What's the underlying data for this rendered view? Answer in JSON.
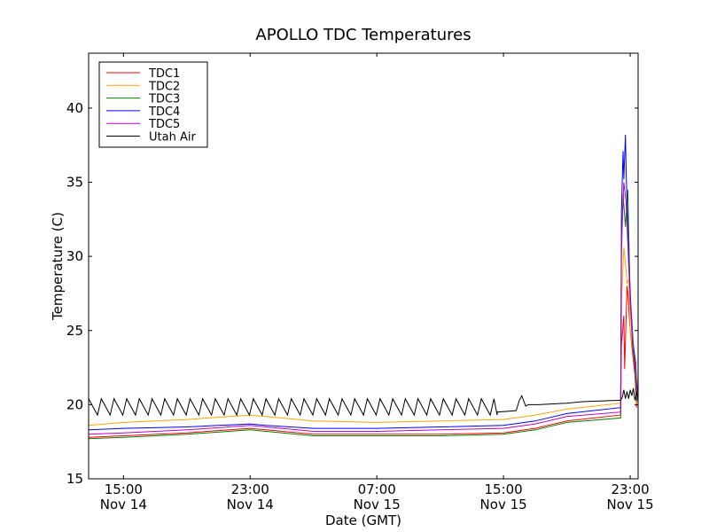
{
  "chart_data": {
    "type": "line",
    "title": "APOLLO TDC Temperatures",
    "xlabel": "Date (GMT)",
    "ylabel": "Temperature (C)",
    "xlim": [
      12.8,
      47.5
    ],
    "ylim": [
      15,
      43.7
    ],
    "yticks": [
      15,
      20,
      25,
      30,
      35,
      40
    ],
    "xticks": [
      {
        "x": 15,
        "time": "15:00",
        "date": "Nov 14"
      },
      {
        "x": 23,
        "time": "23:00",
        "date": "Nov 14"
      },
      {
        "x": 31,
        "time": "07:00",
        "date": "Nov 15"
      },
      {
        "x": 39,
        "time": "15:00",
        "date": "Nov 15"
      },
      {
        "x": 47,
        "time": "23:00",
        "date": "Nov 15"
      }
    ],
    "legend_position": "top-left",
    "series": [
      {
        "name": "TDC1",
        "color": "#ff0000",
        "x": [
          12.8,
          15,
          19,
          23,
          24,
          27,
          31,
          35,
          39,
          41,
          43,
          46.4,
          46.45,
          46.6,
          46.65,
          46.8,
          46.85,
          47.0,
          47.15,
          47.3,
          47.4,
          47.5
        ],
        "y": [
          17.8,
          17.9,
          18.1,
          18.4,
          18.3,
          18.0,
          18.0,
          18.0,
          18.1,
          18.4,
          18.9,
          19.3,
          24.0,
          26.0,
          22.4,
          28.0,
          27.5,
          25.0,
          23.5,
          22.0,
          19.8,
          21.5
        ]
      },
      {
        "name": "TDC2",
        "color": "#ffa500",
        "x": [
          12.8,
          15,
          19,
          23,
          24,
          27,
          31,
          35,
          39,
          41,
          43,
          46.4,
          46.45,
          46.6,
          46.75,
          46.8,
          46.9,
          47.0,
          47.15,
          47.3,
          47.4,
          47.5
        ],
        "y": [
          18.6,
          18.8,
          19.0,
          19.3,
          19.2,
          18.9,
          18.8,
          18.9,
          19.0,
          19.3,
          19.7,
          20.1,
          27.0,
          30.6,
          29.0,
          28.2,
          28.4,
          25.0,
          23.8,
          22.5,
          20.0,
          22.0
        ]
      },
      {
        "name": "TDC3",
        "color": "#008000",
        "x": [
          12.8,
          15,
          19,
          23,
          24,
          27,
          31,
          35,
          39,
          41,
          43,
          46.4,
          46.45,
          46.55,
          46.7,
          46.85,
          47.0,
          47.15,
          47.3,
          47.4,
          47.5
        ],
        "y": [
          17.7,
          17.8,
          18.0,
          18.3,
          18.2,
          17.9,
          17.9,
          17.9,
          18.0,
          18.3,
          18.8,
          19.1,
          30.0,
          34.2,
          32.0,
          34.5,
          27.0,
          24.0,
          22.5,
          20.2,
          21.0
        ]
      },
      {
        "name": "TDC4",
        "color": "#0000ff",
        "x": [
          12.8,
          15,
          19,
          23,
          24,
          27,
          31,
          35,
          39,
          41,
          43,
          46.4,
          46.45,
          46.55,
          46.6,
          46.7,
          46.75,
          46.9,
          47.05,
          47.2,
          47.35,
          47.45,
          47.5
        ],
        "y": [
          18.3,
          18.4,
          18.5,
          18.7,
          18.6,
          18.4,
          18.4,
          18.5,
          18.6,
          18.9,
          19.4,
          19.8,
          33.0,
          37.1,
          35.2,
          38.2,
          35.5,
          30.0,
          26.5,
          24.0,
          22.8,
          20.5,
          21.5
        ]
      },
      {
        "name": "TDC5",
        "color": "#bf00bf",
        "x": [
          12.8,
          15,
          19,
          23,
          24,
          27,
          31,
          35,
          39,
          41,
          43,
          46.4,
          46.45,
          46.6,
          46.75,
          46.9,
          47.05,
          47.2,
          47.35,
          47.45,
          47.5
        ],
        "y": [
          18.0,
          18.1,
          18.3,
          18.6,
          18.5,
          18.2,
          18.2,
          18.3,
          18.4,
          18.7,
          19.2,
          19.5,
          31.0,
          35.0,
          33.5,
          29.5,
          26.0,
          23.8,
          22.5,
          20.3,
          21.2
        ]
      },
      {
        "name": "Utah Air",
        "color": "#000000",
        "sawtooth": {
          "start": 12.8,
          "end": 38.6,
          "period": 0.8,
          "low": 19.3,
          "high": 20.4
        },
        "x": [
          38.6,
          39.8,
          40.0,
          40.15,
          40.4,
          40.55,
          41.2,
          43,
          44,
          46.4,
          46.5,
          46.6,
          46.7,
          46.8,
          46.9,
          47.0,
          47.1,
          47.2,
          47.3,
          47.4,
          47.5
        ],
        "y": [
          19.5,
          19.6,
          20.3,
          20.6,
          19.9,
          20.0,
          20.0,
          20.1,
          20.2,
          20.3,
          20.5,
          21.0,
          20.4,
          20.9,
          20.4,
          21.0,
          20.6,
          21.1,
          20.3,
          20.8,
          20.5
        ]
      }
    ]
  }
}
